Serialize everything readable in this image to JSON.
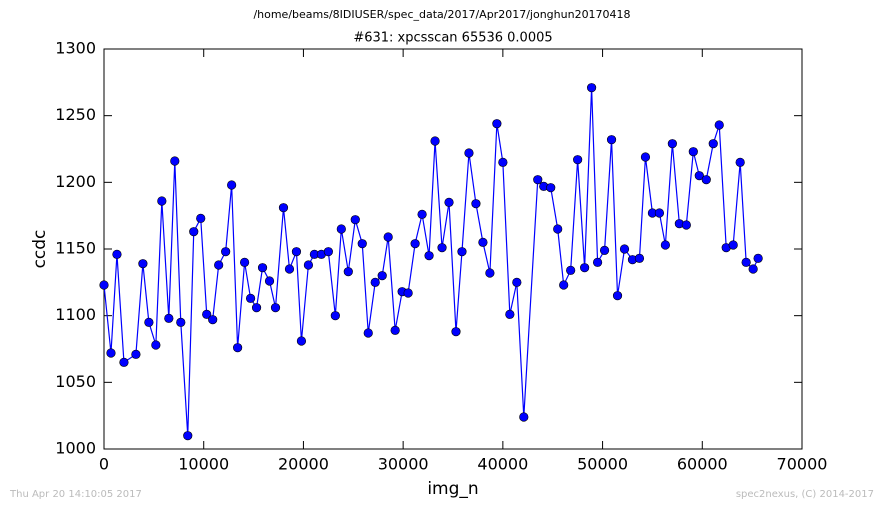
{
  "chart_data": {
    "type": "line",
    "suptitle": "/home/beams/8IDIUSER/spec_data/2017/Apr2017/jonghun20170418",
    "title": "#631: xpcsscan 65536 0.0005",
    "xlabel": "img_n",
    "ylabel": "ccdc",
    "footer_left": "Thu Apr 20 14:10:05 2017",
    "footer_right": "spec2nexus, (C) 2014-2017",
    "color": "#0000ff",
    "marker": true,
    "x": [
      0,
      700,
      1300,
      2000,
      3200,
      3900,
      4500,
      5200,
      5800,
      6500,
      7100,
      7700,
      8400,
      9000,
      9700,
      10300,
      10900,
      11500,
      12200,
      12800,
      13400,
      14100,
      14700,
      15300,
      15900,
      16600,
      17200,
      18000,
      18600,
      19300,
      19800,
      20500,
      21100,
      21800,
      22500,
      23200,
      23800,
      24500,
      25200,
      25900,
      26500,
      27200,
      27900,
      28500,
      29200,
      29900,
      30500,
      31200,
      31900,
      32600,
      33200,
      33900,
      34600,
      35300,
      35900,
      36600,
      37300,
      38000,
      38700,
      39400,
      40000,
      40700,
      41400,
      42100,
      43500,
      44100,
      44800,
      45500,
      46100,
      46800,
      47500,
      48200,
      48900,
      49500,
      50200,
      50900,
      51500,
      52200,
      53000,
      53700,
      54300,
      55000,
      55700,
      56300,
      57000,
      57700,
      58400,
      59100,
      59700,
      60400,
      61100,
      61700,
      62400,
      63100,
      63800,
      64400,
      65100,
      65600
    ],
    "values": [
      1123,
      1072,
      1146,
      1065,
      1071,
      1139,
      1095,
      1078,
      1186,
      1098,
      1216,
      1095,
      1010,
      1163,
      1173,
      1101,
      1097,
      1138,
      1148,
      1198,
      1076,
      1140,
      1113,
      1106,
      1136,
      1126,
      1106,
      1181,
      1135,
      1148,
      1081,
      1138,
      1146,
      1146,
      1148,
      1100,
      1165,
      1133,
      1172,
      1154,
      1087,
      1125,
      1130,
      1159,
      1089,
      1118,
      1117,
      1154,
      1176,
      1145,
      1231,
      1151,
      1185,
      1088,
      1148,
      1222,
      1184,
      1155,
      1132,
      1244,
      1215,
      1101,
      1125,
      1024,
      1202,
      1197,
      1196,
      1165,
      1123,
      1134,
      1217,
      1136,
      1271,
      1140,
      1149,
      1232,
      1115,
      1150,
      1142,
      1143,
      1219,
      1177,
      1177,
      1153,
      1229,
      1169,
      1168,
      1223,
      1205,
      1202,
      1229,
      1243,
      1151,
      1153,
      1215,
      1140,
      1135,
      1143
    ],
    "xlim": [
      0,
      70000
    ],
    "xticks": [
      0,
      10000,
      20000,
      30000,
      40000,
      50000,
      60000,
      70000
    ],
    "ylim": [
      1000,
      1300
    ],
    "yticks": [
      1000,
      1050,
      1100,
      1150,
      1200,
      1250,
      1300
    ]
  }
}
